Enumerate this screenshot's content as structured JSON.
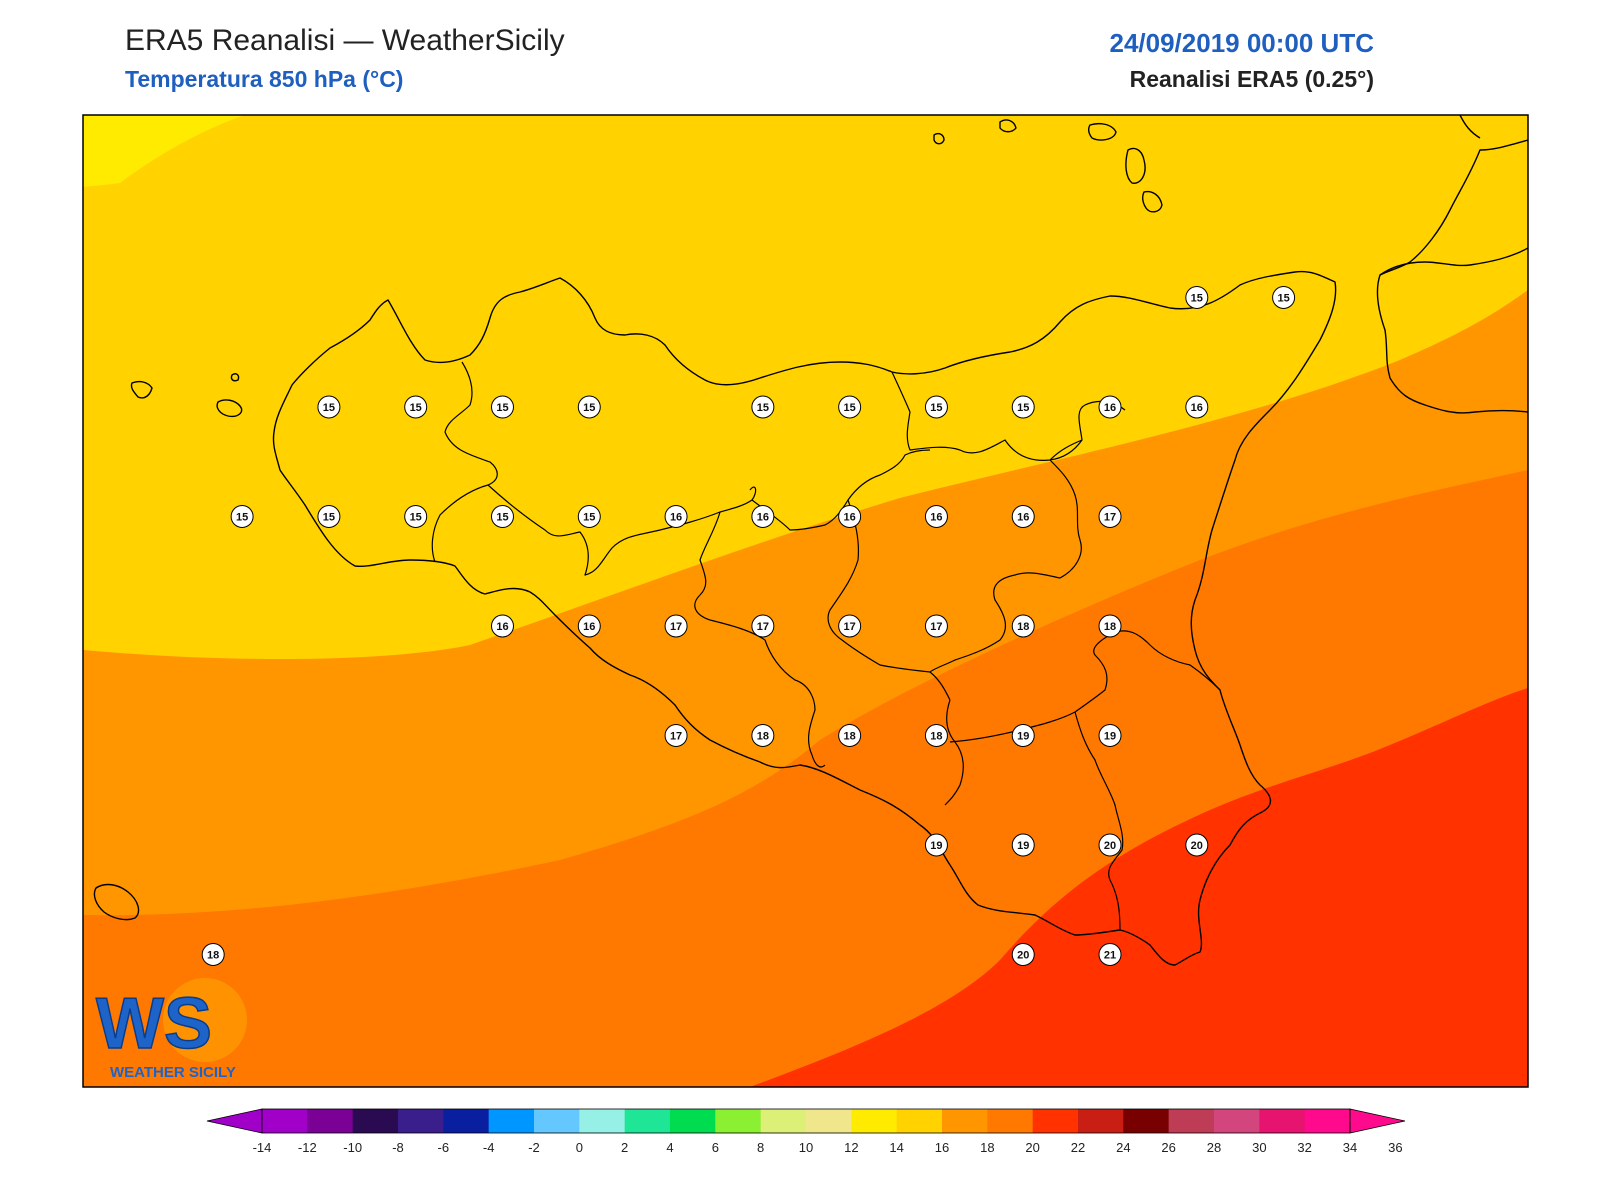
{
  "header": {
    "title": "ERA5 Reanalisi — WeatherSicily",
    "subtitle": "Temperatura 850 hPa (°C)",
    "datetime": "24/09/2019 00:00 UTC",
    "model": "Reanalisi ERA5 (0.25°)"
  },
  "logo": {
    "letters": "WS",
    "name": "WEATHER SICILY"
  },
  "colorbar": {
    "ticks": [
      "-14",
      "-12",
      "-10",
      "-8",
      "-6",
      "-4",
      "-2",
      "0",
      "2",
      "4",
      "6",
      "8",
      "10",
      "12",
      "14",
      "16",
      "18",
      "20",
      "22",
      "24",
      "26",
      "28",
      "30",
      "32",
      "34",
      "36"
    ],
    "colors": [
      "#a000c8",
      "#7a0096",
      "#2a0a50",
      "#3a1e8c",
      "#0a1ea0",
      "#0096ff",
      "#64c8ff",
      "#96f0e6",
      "#1ee696",
      "#00dc50",
      "#8cf032",
      "#dcf078",
      "#f0e68c",
      "#ffeb00",
      "#ffd200",
      "#ff9600",
      "#ff7800",
      "#ff3200",
      "#c81e14",
      "#780000",
      "#be3c55",
      "#d2467d",
      "#e6146e",
      "#ff0a8c"
    ],
    "under_color": "#a000c8",
    "over_color": "#ff0a8c"
  },
  "map_points": [
    {
      "v": "15",
      "lon": 12.35,
      "lat": 38.15
    },
    {
      "v": "15",
      "lon": 12.65,
      "lat": 38.15
    },
    {
      "v": "15",
      "lon": 12.95,
      "lat": 38.15
    },
    {
      "v": "15",
      "lon": 13.25,
      "lat": 38.15
    },
    {
      "v": "15",
      "lon": 13.85,
      "lat": 38.15
    },
    {
      "v": "15",
      "lon": 14.15,
      "lat": 38.15
    },
    {
      "v": "15",
      "lon": 14.45,
      "lat": 38.15
    },
    {
      "v": "15",
      "lon": 14.75,
      "lat": 38.15
    },
    {
      "v": "16",
      "lon": 15.05,
      "lat": 38.15
    },
    {
      "v": "16",
      "lon": 15.35,
      "lat": 38.15
    },
    {
      "v": "15",
      "lon": 15.35,
      "lat": 38.45
    },
    {
      "v": "15",
      "lon": 15.65,
      "lat": 38.45
    },
    {
      "v": "15",
      "lon": 12.05,
      "lat": 37.85
    },
    {
      "v": "15",
      "lon": 12.35,
      "lat": 37.85
    },
    {
      "v": "15",
      "lon": 12.65,
      "lat": 37.85
    },
    {
      "v": "15",
      "lon": 12.95,
      "lat": 37.85
    },
    {
      "v": "15",
      "lon": 13.25,
      "lat": 37.85
    },
    {
      "v": "16",
      "lon": 13.55,
      "lat": 37.85
    },
    {
      "v": "16",
      "lon": 13.85,
      "lat": 37.85
    },
    {
      "v": "16",
      "lon": 14.15,
      "lat": 37.85
    },
    {
      "v": "16",
      "lon": 14.45,
      "lat": 37.85
    },
    {
      "v": "16",
      "lon": 14.75,
      "lat": 37.85
    },
    {
      "v": "17",
      "lon": 15.05,
      "lat": 37.85
    },
    {
      "v": "16",
      "lon": 12.95,
      "lat": 37.55
    },
    {
      "v": "16",
      "lon": 13.25,
      "lat": 37.55
    },
    {
      "v": "17",
      "lon": 13.55,
      "lat": 37.55
    },
    {
      "v": "17",
      "lon": 13.85,
      "lat": 37.55
    },
    {
      "v": "17",
      "lon": 14.15,
      "lat": 37.55
    },
    {
      "v": "17",
      "lon": 14.45,
      "lat": 37.55
    },
    {
      "v": "18",
      "lon": 14.75,
      "lat": 37.55
    },
    {
      "v": "18",
      "lon": 15.05,
      "lat": 37.55
    },
    {
      "v": "17",
      "lon": 13.55,
      "lat": 37.25
    },
    {
      "v": "18",
      "lon": 13.85,
      "lat": 37.25
    },
    {
      "v": "18",
      "lon": 14.15,
      "lat": 37.25
    },
    {
      "v": "18",
      "lon": 14.45,
      "lat": 37.25
    },
    {
      "v": "19",
      "lon": 14.75,
      "lat": 37.25
    },
    {
      "v": "19",
      "lon": 15.05,
      "lat": 37.25
    },
    {
      "v": "19",
      "lon": 14.45,
      "lat": 36.95
    },
    {
      "v": "19",
      "lon": 14.75,
      "lat": 36.95
    },
    {
      "v": "20",
      "lon": 15.05,
      "lat": 36.95
    },
    {
      "v": "20",
      "lon": 15.35,
      "lat": 36.95
    },
    {
      "v": "18",
      "lon": 11.95,
      "lat": 36.65
    },
    {
      "v": "20",
      "lon": 14.75,
      "lat": 36.65
    },
    {
      "v": "21",
      "lon": 15.05,
      "lat": 36.65
    }
  ]
}
